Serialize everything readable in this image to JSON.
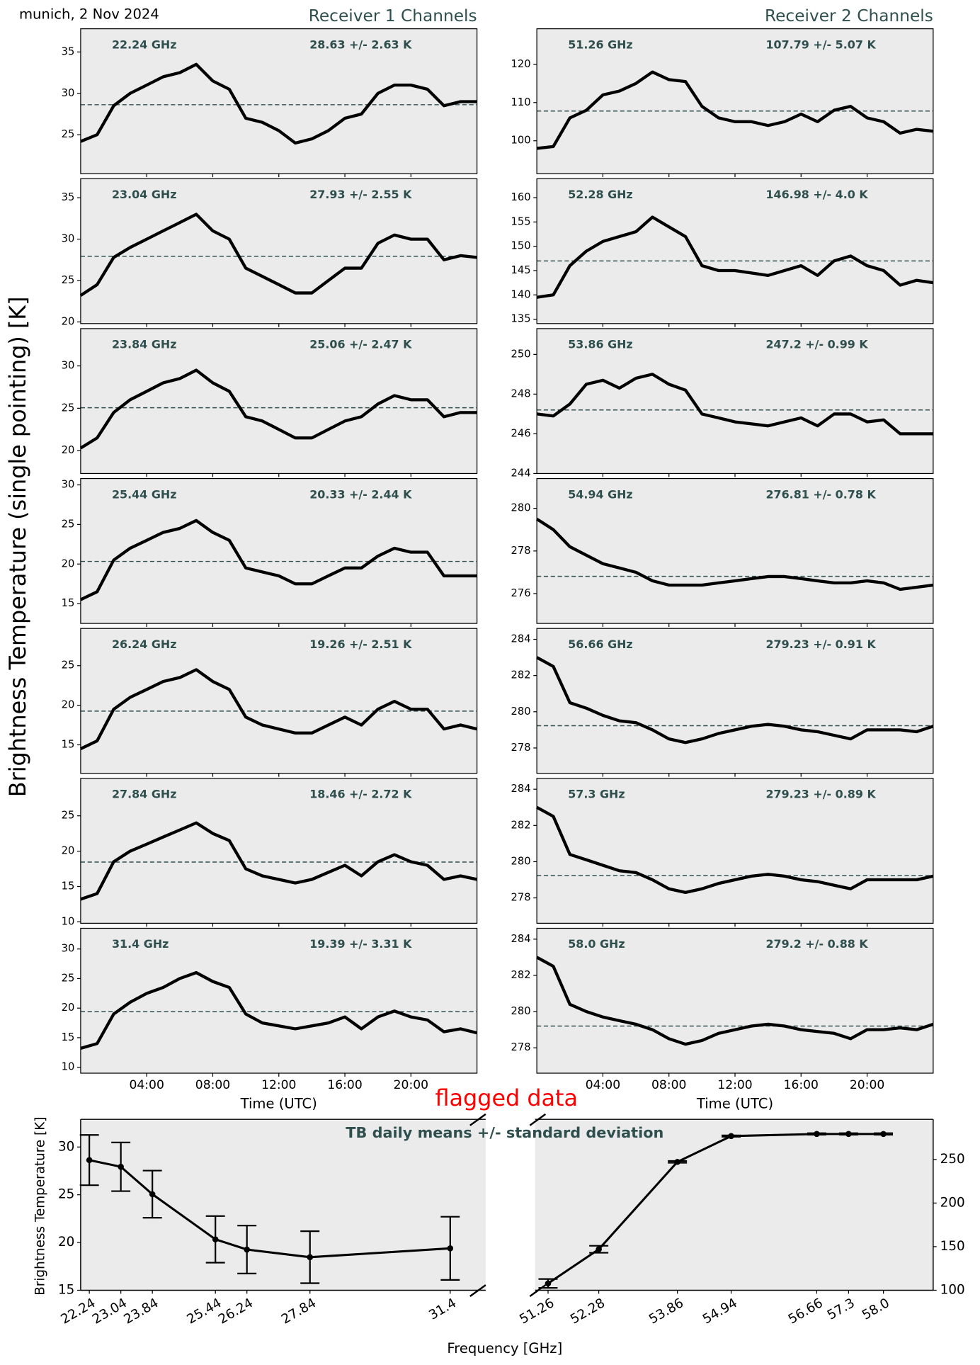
{
  "header": {
    "location_date": "munich, 2 Nov 2024",
    "receiver1_title": "Receiver 1 Channels",
    "receiver2_title": "Receiver 2 Channels",
    "ylabel": "Brightness Temperature (single pointing) [K]"
  },
  "chart_data": [
    {
      "type": "line",
      "annotation": "22.24 GHz",
      "stats_label": "28.63 +/- 2.63 K",
      "mean": 28.63,
      "xlim": [
        0,
        24
      ],
      "xticks": [
        4,
        8,
        12,
        16,
        20
      ],
      "ylim": [
        20.3,
        37.8
      ],
      "yticks": [
        25,
        30,
        35
      ],
      "x": [
        0,
        1,
        2,
        3,
        4,
        5,
        6,
        7,
        8,
        9,
        10,
        11,
        12,
        13,
        14,
        15,
        16,
        17,
        18,
        19,
        20,
        21,
        22,
        23,
        24
      ],
      "values": [
        24.2,
        25,
        28.5,
        30,
        31,
        32,
        32.5,
        33.5,
        31.5,
        30.5,
        27,
        26.5,
        25.5,
        24,
        24.5,
        25.5,
        27,
        27.5,
        30,
        31,
        31,
        30.5,
        28.5,
        29,
        29
      ]
    },
    {
      "type": "line",
      "annotation": "23.04 GHz",
      "stats_label": "27.93 +/- 2.55 K",
      "mean": 27.93,
      "xlim": [
        0,
        24
      ],
      "xticks": [
        4,
        8,
        12,
        16,
        20
      ],
      "ylim": [
        19.8,
        37.3
      ],
      "yticks": [
        20,
        25,
        30,
        35
      ],
      "x": [
        0,
        1,
        2,
        3,
        4,
        5,
        6,
        7,
        8,
        9,
        10,
        11,
        12,
        13,
        14,
        15,
        16,
        17,
        18,
        19,
        20,
        21,
        22,
        23,
        24
      ],
      "values": [
        23.2,
        24.5,
        27.8,
        29,
        30,
        31,
        32,
        33,
        31,
        30,
        26.5,
        25.5,
        24.5,
        23.5,
        23.5,
        25,
        26.5,
        26.5,
        29.5,
        30.5,
        30,
        30,
        27.5,
        28,
        27.8
      ]
    },
    {
      "type": "line",
      "annotation": "23.84 GHz",
      "stats_label": "25.06 +/- 2.47 K",
      "mean": 25.06,
      "xlim": [
        0,
        24
      ],
      "xticks": [
        4,
        8,
        12,
        16,
        20
      ],
      "ylim": [
        17.3,
        34.4
      ],
      "yticks": [
        20,
        25,
        30
      ],
      "x": [
        0,
        1,
        2,
        3,
        4,
        5,
        6,
        7,
        8,
        9,
        10,
        11,
        12,
        13,
        14,
        15,
        16,
        17,
        18,
        19,
        20,
        21,
        22,
        23,
        24
      ],
      "values": [
        20.3,
        21.5,
        24.5,
        26,
        27,
        28,
        28.5,
        29.5,
        28,
        27,
        24,
        23.5,
        22.5,
        21.5,
        21.5,
        22.5,
        23.5,
        24,
        25.5,
        26.5,
        26,
        26,
        24,
        24.5,
        24.5
      ]
    },
    {
      "type": "line",
      "annotation": "25.44 GHz",
      "stats_label": "20.33 +/- 2.44 K",
      "mean": 20.33,
      "xlim": [
        0,
        24
      ],
      "xticks": [
        4,
        8,
        12,
        16,
        20
      ],
      "ylim": [
        12.5,
        30.8
      ],
      "yticks": [
        15,
        20,
        25,
        30
      ],
      "x": [
        0,
        1,
        2,
        3,
        4,
        5,
        6,
        7,
        8,
        9,
        10,
        11,
        12,
        13,
        14,
        15,
        16,
        17,
        18,
        19,
        20,
        21,
        22,
        23,
        24
      ],
      "values": [
        15.5,
        16.5,
        20.5,
        22,
        23,
        24,
        24.5,
        25.5,
        24,
        23,
        19.5,
        19,
        18.5,
        17.5,
        17.5,
        18.5,
        19.5,
        19.5,
        21,
        22,
        21.5,
        21.5,
        18.5,
        18.5,
        18.5
      ]
    },
    {
      "type": "line",
      "annotation": "26.24 GHz",
      "stats_label": "19.26 +/- 2.51 K",
      "mean": 19.26,
      "xlim": [
        0,
        24
      ],
      "xticks": [
        4,
        8,
        12,
        16,
        20
      ],
      "ylim": [
        11.4,
        29.7
      ],
      "yticks": [
        15,
        20,
        25
      ],
      "x": [
        0,
        1,
        2,
        3,
        4,
        5,
        6,
        7,
        8,
        9,
        10,
        11,
        12,
        13,
        14,
        15,
        16,
        17,
        18,
        19,
        20,
        21,
        22,
        23,
        24
      ],
      "values": [
        14.5,
        15.5,
        19.5,
        21,
        22,
        23,
        23.5,
        24.5,
        23,
        22,
        18.5,
        17.5,
        17,
        16.5,
        16.5,
        17.5,
        18.5,
        17.5,
        19.5,
        20.5,
        19.5,
        19.5,
        17,
        17.5,
        17
      ]
    },
    {
      "type": "line",
      "annotation": "27.84 GHz",
      "stats_label": "18.46 +/- 2.72 K",
      "mean": 18.46,
      "xlim": [
        0,
        24
      ],
      "xticks": [
        4,
        8,
        12,
        16,
        20
      ],
      "ylim": [
        9.8,
        30.3
      ],
      "yticks": [
        10,
        15,
        20,
        25
      ],
      "x": [
        0,
        1,
        2,
        3,
        4,
        5,
        6,
        7,
        8,
        9,
        10,
        11,
        12,
        13,
        14,
        15,
        16,
        17,
        18,
        19,
        20,
        21,
        22,
        23,
        24
      ],
      "values": [
        13.2,
        14,
        18.5,
        20,
        21,
        22,
        23,
        24,
        22.5,
        21.5,
        17.5,
        16.5,
        16,
        15.5,
        16,
        17,
        18,
        16.5,
        18.5,
        19.5,
        18.5,
        18,
        16,
        16.5,
        16
      ]
    },
    {
      "type": "line",
      "annotation": "31.4 GHz",
      "stats_label": "19.39 +/- 3.31 K",
      "mean": 19.39,
      "xlim": [
        0,
        24
      ],
      "ylim": [
        9.0,
        33.5
      ],
      "yticks": [
        10,
        15,
        20,
        25,
        30
      ],
      "xlabel": "Time (UTC)",
      "xticks": [
        {
          "value": 4,
          "label": "04:00"
        },
        {
          "value": 8,
          "label": "08:00"
        },
        {
          "value": 12,
          "label": "12:00"
        },
        {
          "value": 16,
          "label": "16:00"
        },
        {
          "value": 20,
          "label": "20:00"
        }
      ],
      "x": [
        0,
        1,
        2,
        3,
        4,
        5,
        6,
        7,
        8,
        9,
        10,
        11,
        12,
        13,
        14,
        15,
        16,
        17,
        18,
        19,
        20,
        21,
        22,
        23,
        24
      ],
      "values": [
        13.2,
        14,
        19,
        21,
        22.5,
        23.5,
        25,
        26,
        24.5,
        23.5,
        19,
        17.5,
        17,
        16.5,
        17,
        17.5,
        18.5,
        16.5,
        18.5,
        19.5,
        18.5,
        18,
        16,
        16.5,
        15.8
      ]
    },
    {
      "type": "line",
      "annotation": "51.26 GHz",
      "stats_label": "107.79 +/- 5.07 K",
      "mean": 107.79,
      "xlim": [
        0,
        24
      ],
      "xticks": [
        4,
        8,
        12,
        16,
        20
      ],
      "ylim": [
        91.4,
        129.3
      ],
      "yticks": [
        100,
        110,
        120
      ],
      "x": [
        0,
        1,
        2,
        3,
        4,
        5,
        6,
        7,
        8,
        9,
        10,
        11,
        12,
        13,
        14,
        15,
        16,
        17,
        18,
        19,
        20,
        21,
        22,
        23,
        24
      ],
      "values": [
        98,
        98.5,
        106,
        108,
        112,
        113,
        115,
        118,
        116,
        115.5,
        109,
        106,
        105,
        105,
        104,
        105,
        107,
        105,
        108,
        109,
        106,
        105,
        102,
        103,
        102.5
      ]
    },
    {
      "type": "line",
      "annotation": "52.28 GHz",
      "stats_label": "146.98 +/- 4.0 K",
      "mean": 146.98,
      "xlim": [
        0,
        24
      ],
      "xticks": [
        4,
        8,
        12,
        16,
        20
      ],
      "ylim": [
        134.1,
        163.9
      ],
      "yticks": [
        135,
        140,
        145,
        150,
        155,
        160
      ],
      "x": [
        0,
        1,
        2,
        3,
        4,
        5,
        6,
        7,
        8,
        9,
        10,
        11,
        12,
        13,
        14,
        15,
        16,
        17,
        18,
        19,
        20,
        21,
        22,
        23,
        24
      ],
      "values": [
        139.5,
        140,
        146,
        149,
        151,
        152,
        153,
        156,
        154,
        152,
        146,
        145,
        145,
        144.5,
        144,
        145,
        146,
        144,
        147,
        148,
        146,
        145,
        142,
        143,
        142.5
      ]
    },
    {
      "type": "line",
      "annotation": "53.86 GHz",
      "stats_label": "247.2 +/- 0.99 K",
      "mean": 247.2,
      "xlim": [
        0,
        24
      ],
      "xticks": [
        4,
        8,
        12,
        16,
        20
      ],
      "ylim": [
        244,
        251.3
      ],
      "yticks": [
        244,
        246,
        248,
        250
      ],
      "x": [
        0,
        1,
        2,
        3,
        4,
        5,
        6,
        7,
        8,
        9,
        10,
        11,
        12,
        13,
        14,
        15,
        16,
        17,
        18,
        19,
        20,
        21,
        22,
        23,
        24
      ],
      "values": [
        247,
        246.9,
        247.5,
        248.5,
        248.7,
        248.3,
        248.8,
        249,
        248.5,
        248.2,
        247,
        246.8,
        246.6,
        246.5,
        246.4,
        246.6,
        246.8,
        246.4,
        247,
        247,
        246.6,
        246.7,
        246,
        246,
        246
      ]
    },
    {
      "type": "line",
      "annotation": "54.94 GHz",
      "stats_label": "276.81 +/- 0.78 K",
      "mean": 276.81,
      "xlim": [
        0,
        24
      ],
      "xticks": [
        4,
        8,
        12,
        16,
        20
      ],
      "ylim": [
        274.6,
        281.4
      ],
      "yticks": [
        276,
        278,
        280
      ],
      "x": [
        0,
        1,
        2,
        3,
        4,
        5,
        6,
        7,
        8,
        9,
        10,
        11,
        12,
        13,
        14,
        15,
        16,
        17,
        18,
        19,
        20,
        21,
        22,
        23,
        24
      ],
      "values": [
        279.5,
        279,
        278.2,
        277.8,
        277.4,
        277.2,
        277,
        276.6,
        276.4,
        276.4,
        276.4,
        276.5,
        276.6,
        276.7,
        276.8,
        276.8,
        276.7,
        276.6,
        276.5,
        276.5,
        276.6,
        276.5,
        276.2,
        276.3,
        276.4
      ]
    },
    {
      "type": "line",
      "annotation": "56.66 GHz",
      "stats_label": "279.23 +/- 0.91 K",
      "mean": 279.23,
      "xlim": [
        0,
        24
      ],
      "xticks": [
        4,
        8,
        12,
        16,
        20
      ],
      "ylim": [
        276.6,
        284.6
      ],
      "yticks": [
        278,
        280,
        282,
        284
      ],
      "x": [
        0,
        1,
        2,
        3,
        4,
        5,
        6,
        7,
        8,
        9,
        10,
        11,
        12,
        13,
        14,
        15,
        16,
        17,
        18,
        19,
        20,
        21,
        22,
        23,
        24
      ],
      "values": [
        283,
        282.5,
        280.5,
        280.2,
        279.8,
        279.5,
        279.4,
        279,
        278.5,
        278.3,
        278.5,
        278.8,
        279,
        279.2,
        279.3,
        279.2,
        279,
        278.9,
        278.7,
        278.5,
        279,
        279,
        279,
        278.9,
        279.2
      ]
    },
    {
      "type": "line",
      "annotation": "57.3 GHz",
      "stats_label": "279.23 +/- 0.89 K",
      "mean": 279.23,
      "xlim": [
        0,
        24
      ],
      "xticks": [
        4,
        8,
        12,
        16,
        20
      ],
      "ylim": [
        276.6,
        284.6
      ],
      "yticks": [
        278,
        280,
        282,
        284
      ],
      "x": [
        0,
        1,
        2,
        3,
        4,
        5,
        6,
        7,
        8,
        9,
        10,
        11,
        12,
        13,
        14,
        15,
        16,
        17,
        18,
        19,
        20,
        21,
        22,
        23,
        24
      ],
      "values": [
        283,
        282.5,
        280.4,
        280.1,
        279.8,
        279.5,
        279.4,
        279,
        278.5,
        278.3,
        278.5,
        278.8,
        279,
        279.2,
        279.3,
        279.2,
        279,
        278.9,
        278.7,
        278.5,
        279,
        279,
        279,
        279,
        279.2
      ]
    },
    {
      "type": "line",
      "annotation": "58.0 GHz",
      "stats_label": "279.2 +/- 0.88 K",
      "mean": 279.2,
      "xlim": [
        0,
        24
      ],
      "ylim": [
        276.6,
        284.6
      ],
      "yticks": [
        278,
        280,
        282,
        284
      ],
      "xlabel": "Time (UTC)",
      "xticks": [
        {
          "value": 4,
          "label": "04:00"
        },
        {
          "value": 8,
          "label": "08:00"
        },
        {
          "value": 12,
          "label": "12:00"
        },
        {
          "value": 16,
          "label": "16:00"
        },
        {
          "value": 20,
          "label": "20:00"
        }
      ],
      "x": [
        0,
        1,
        2,
        3,
        4,
        5,
        6,
        7,
        8,
        9,
        10,
        11,
        12,
        13,
        14,
        15,
        16,
        17,
        18,
        19,
        20,
        21,
        22,
        23,
        24
      ],
      "values": [
        283,
        282.5,
        280.4,
        280,
        279.7,
        279.5,
        279.3,
        279,
        278.5,
        278.2,
        278.4,
        278.8,
        279,
        279.2,
        279.3,
        279.2,
        279,
        278.9,
        278.8,
        278.5,
        279,
        279,
        279.1,
        279,
        279.3
      ]
    },
    {
      "type": "errorbar",
      "title": "TB daily means +/- standard deviation",
      "annotation": "flagged data",
      "ylabel": "Brightness Temperature [K]",
      "xlabel": "Frequency [GHz]",
      "ylim": [
        15,
        32.9
      ],
      "yticks": [
        15,
        20,
        25,
        30
      ],
      "y2lim": [
        100,
        296
      ],
      "y2ticks": [
        100,
        150,
        200,
        250
      ],
      "groups": [
        {
          "xlim": [
            22.02,
            32.3
          ],
          "x": [
            22.24,
            23.04,
            23.84,
            25.44,
            26.24,
            27.84,
            31.4
          ],
          "xticks": [
            22.24,
            23.04,
            23.84,
            25.44,
            26.24,
            27.84,
            31.4
          ],
          "values": [
            28.63,
            27.93,
            25.06,
            20.33,
            19.26,
            18.46,
            19.39
          ],
          "errors": [
            2.63,
            2.55,
            2.47,
            2.44,
            2.51,
            2.72,
            3.31
          ]
        },
        {
          "axis": "y2",
          "xlim": [
            51.0,
            59.0
          ],
          "x": [
            51.26,
            52.28,
            53.86,
            54.94,
            56.66,
            57.3,
            58.0
          ],
          "xticks": [
            51.26,
            52.28,
            53.86,
            54.94,
            56.66,
            57.3,
            {
              "value": 58.0,
              "label": "58.0"
            }
          ],
          "values": [
            107.79,
            146.98,
            247.2,
            276.81,
            279.23,
            279.23,
            279.2
          ],
          "errors": [
            5.07,
            4.0,
            0.99,
            0.78,
            0.91,
            0.89,
            0.88
          ]
        }
      ]
    }
  ]
}
